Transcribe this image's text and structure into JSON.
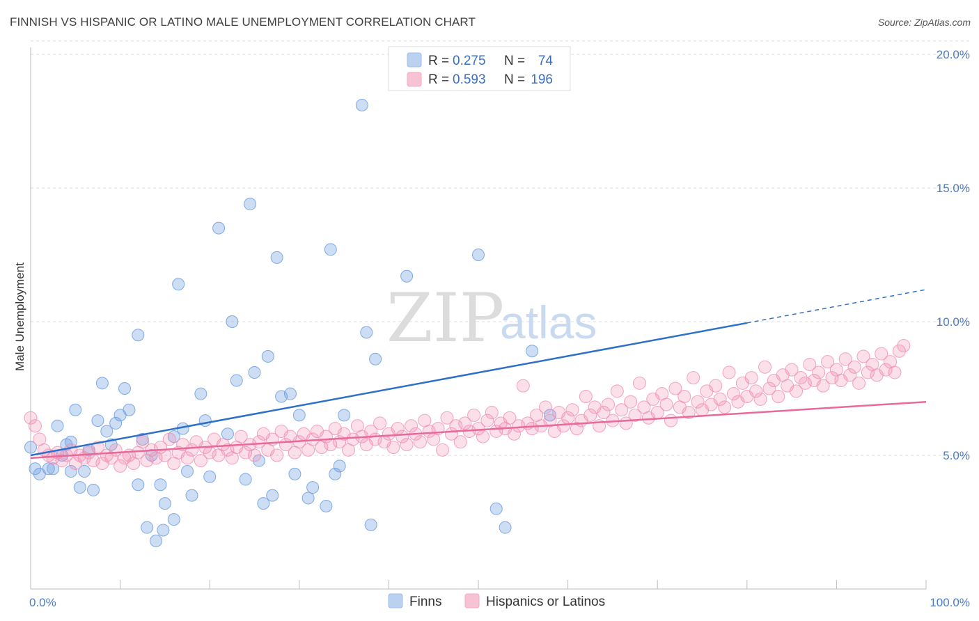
{
  "header": {
    "title": "FINNISH VS HISPANIC OR LATINO MALE UNEMPLOYMENT CORRELATION CHART",
    "source": "Source: ZipAtlas.com"
  },
  "watermark": {
    "zip": "ZIP",
    "atlas": "atlas"
  },
  "legend": {
    "rows": [
      {
        "r_label": "R = ",
        "r_value": "0.275",
        "n_label": "N = ",
        "n_value": "74",
        "color": "#9dbde8"
      },
      {
        "r_label": "R = ",
        "r_value": "0.593",
        "n_label": "N = ",
        "n_value": "196",
        "color": "#f4a9c2"
      }
    ]
  },
  "bottom_legend": [
    {
      "label": "Finns",
      "color": "#9dbde8"
    },
    {
      "label": "Hispanics or Latinos",
      "color": "#f4a9c2"
    }
  ],
  "chart_data": {
    "type": "scatter",
    "ylabel": "Male Unemployment",
    "xlim": [
      0,
      100
    ],
    "ylim": [
      0,
      20
    ],
    "x_tick_labels": [
      "0.0%",
      "100.0%"
    ],
    "y_ticks": [
      {
        "value": 5,
        "label": "5.0%"
      },
      {
        "value": 10,
        "label": "10.0%"
      },
      {
        "value": 15,
        "label": "15.0%"
      },
      {
        "value": 20,
        "label": "20.0%"
      }
    ],
    "grid": true,
    "colors": {
      "finns": "#6c9ee0",
      "hispanics": "#f08db0",
      "finns_line": "#2e6fc9",
      "hispanics_line": "#e8699a"
    },
    "series": [
      {
        "name": "Finns",
        "trend": {
          "x0": 0,
          "y0": 5.0,
          "x1": 80,
          "y1": 9.95,
          "dash_to_x": 100,
          "dash_to_y": 11.2
        },
        "points": [
          [
            0,
            5.3
          ],
          [
            0.5,
            4.5
          ],
          [
            1,
            4.3
          ],
          [
            2,
            4.5
          ],
          [
            2.5,
            4.5
          ],
          [
            3,
            6.1
          ],
          [
            3.5,
            5.0
          ],
          [
            4,
            5.4
          ],
          [
            4.5,
            4.4
          ],
          [
            4.5,
            5.5
          ],
          [
            5,
            6.7
          ],
          [
            5.5,
            3.8
          ],
          [
            6,
            4.4
          ],
          [
            6.5,
            5.2
          ],
          [
            7,
            3.7
          ],
          [
            7.5,
            6.3
          ],
          [
            8,
            7.7
          ],
          [
            8.5,
            5.9
          ],
          [
            9,
            5.4
          ],
          [
            9.5,
            6.2
          ],
          [
            10,
            6.5
          ],
          [
            10.5,
            7.5
          ],
          [
            11,
            6.7
          ],
          [
            12,
            3.9
          ],
          [
            12,
            9.5
          ],
          [
            12.5,
            5.6
          ],
          [
            13,
            2.3
          ],
          [
            13.5,
            5.0
          ],
          [
            14,
            1.8
          ],
          [
            14.5,
            3.9
          ],
          [
            14.8,
            2.2
          ],
          [
            15,
            3.2
          ],
          [
            16,
            2.6
          ],
          [
            16,
            5.7
          ],
          [
            16.5,
            11.4
          ],
          [
            17,
            6.0
          ],
          [
            17.5,
            4.4
          ],
          [
            18,
            3.5
          ],
          [
            19,
            7.3
          ],
          [
            19.5,
            6.3
          ],
          [
            20,
            4.2
          ],
          [
            21,
            13.5
          ],
          [
            22,
            5.8
          ],
          [
            22.5,
            10.0
          ],
          [
            23,
            7.8
          ],
          [
            24,
            4.1
          ],
          [
            24.5,
            14.4
          ],
          [
            25,
            8.1
          ],
          [
            25.5,
            4.8
          ],
          [
            26,
            3.2
          ],
          [
            26.5,
            8.7
          ],
          [
            27,
            3.5
          ],
          [
            27.5,
            12.4
          ],
          [
            28,
            7.2
          ],
          [
            29,
            7.3
          ],
          [
            29.5,
            4.3
          ],
          [
            30,
            6.5
          ],
          [
            31,
            3.4
          ],
          [
            31.5,
            3.8
          ],
          [
            33,
            3.1
          ],
          [
            33.5,
            12.7
          ],
          [
            34,
            4.3
          ],
          [
            35,
            6.5
          ],
          [
            38,
            2.4
          ],
          [
            37.5,
            9.6
          ],
          [
            37,
            18.1
          ],
          [
            38.5,
            8.6
          ],
          [
            42,
            11.7
          ],
          [
            50,
            12.5
          ],
          [
            52,
            3.0
          ],
          [
            53,
            2.3
          ],
          [
            56,
            8.9
          ],
          [
            58,
            6.5
          ],
          [
            34.5,
            4.6
          ]
        ]
      },
      {
        "name": "Hispanics or Latinos",
        "trend": {
          "x0": 0,
          "y0": 4.9,
          "x1": 100,
          "y1": 7.0
        },
        "points": [
          [
            0,
            6.4
          ],
          [
            0.5,
            6.1
          ],
          [
            1,
            5.6
          ],
          [
            1.5,
            5.2
          ],
          [
            2,
            5.0
          ],
          [
            2.5,
            4.9
          ],
          [
            3,
            5.1
          ],
          [
            3.5,
            4.8
          ],
          [
            4,
            5.0
          ],
          [
            4.5,
            5.2
          ],
          [
            5,
            4.7
          ],
          [
            5.5,
            5.0
          ],
          [
            6,
            4.9
          ],
          [
            6.5,
            5.1
          ],
          [
            7,
            4.8
          ],
          [
            7.5,
            5.3
          ],
          [
            8,
            4.7
          ],
          [
            8.5,
            5.0
          ],
          [
            9,
            4.9
          ],
          [
            9.5,
            5.2
          ],
          [
            10,
            4.6
          ],
          [
            10.5,
            4.9
          ],
          [
            11,
            5.0
          ],
          [
            11.5,
            4.7
          ],
          [
            12,
            5.1
          ],
          [
            12.5,
            5.5
          ],
          [
            13,
            4.8
          ],
          [
            13.5,
            5.2
          ],
          [
            14,
            4.9
          ],
          [
            14.5,
            5.3
          ],
          [
            15,
            5.0
          ],
          [
            15.5,
            5.6
          ],
          [
            16,
            4.7
          ],
          [
            16.5,
            5.1
          ],
          [
            17,
            5.4
          ],
          [
            17.5,
            4.9
          ],
          [
            18,
            5.2
          ],
          [
            18.5,
            5.5
          ],
          [
            19,
            4.8
          ],
          [
            19.5,
            5.3
          ],
          [
            20,
            5.1
          ],
          [
            20.5,
            5.6
          ],
          [
            21,
            5.0
          ],
          [
            21.5,
            5.4
          ],
          [
            22,
            5.2
          ],
          [
            22.5,
            4.9
          ],
          [
            23,
            5.3
          ],
          [
            23.5,
            5.7
          ],
          [
            24,
            5.1
          ],
          [
            24.5,
            5.4
          ],
          [
            25,
            5.0
          ],
          [
            25.5,
            5.5
          ],
          [
            26,
            5.8
          ],
          [
            26.5,
            5.2
          ],
          [
            27,
            5.6
          ],
          [
            27.5,
            5.0
          ],
          [
            28,
            5.9
          ],
          [
            28.5,
            5.4
          ],
          [
            29,
            5.7
          ],
          [
            29.5,
            5.1
          ],
          [
            30,
            5.5
          ],
          [
            30.5,
            5.8
          ],
          [
            31,
            5.2
          ],
          [
            31.5,
            5.6
          ],
          [
            32,
            5.9
          ],
          [
            32.5,
            5.3
          ],
          [
            33,
            5.7
          ],
          [
            33.5,
            5.4
          ],
          [
            34,
            6.0
          ],
          [
            34.5,
            5.5
          ],
          [
            35,
            5.8
          ],
          [
            35.5,
            5.2
          ],
          [
            36,
            5.6
          ],
          [
            36.5,
            6.1
          ],
          [
            37,
            5.7
          ],
          [
            37.5,
            5.4
          ],
          [
            38,
            5.9
          ],
          [
            38.5,
            5.6
          ],
          [
            39,
            6.2
          ],
          [
            39.5,
            5.5
          ],
          [
            40,
            5.8
          ],
          [
            40.5,
            5.3
          ],
          [
            41,
            6.0
          ],
          [
            41.5,
            5.7
          ],
          [
            42,
            5.4
          ],
          [
            42.5,
            6.1
          ],
          [
            43,
            5.8
          ],
          [
            43.5,
            5.5
          ],
          [
            44,
            6.3
          ],
          [
            44.5,
            5.9
          ],
          [
            45,
            5.6
          ],
          [
            45.5,
            6.0
          ],
          [
            46,
            5.2
          ],
          [
            46.5,
            6.4
          ],
          [
            47,
            5.8
          ],
          [
            47.5,
            6.1
          ],
          [
            48,
            5.5
          ],
          [
            48.5,
            6.2
          ],
          [
            49,
            5.9
          ],
          [
            49.5,
            6.5
          ],
          [
            50,
            6.0
          ],
          [
            50.5,
            5.7
          ],
          [
            51,
            6.3
          ],
          [
            51.5,
            6.6
          ],
          [
            52,
            5.9
          ],
          [
            52.5,
            6.2
          ],
          [
            53,
            6.0
          ],
          [
            53.5,
            6.4
          ],
          [
            54,
            5.8
          ],
          [
            54.5,
            6.1
          ],
          [
            55,
            7.6
          ],
          [
            55.5,
            6.2
          ],
          [
            56,
            6.0
          ],
          [
            56.5,
            6.5
          ],
          [
            57,
            6.1
          ],
          [
            57.5,
            6.8
          ],
          [
            58,
            6.3
          ],
          [
            58.5,
            5.9
          ],
          [
            59,
            6.6
          ],
          [
            59.5,
            6.1
          ],
          [
            60,
            6.4
          ],
          [
            60.5,
            6.7
          ],
          [
            61,
            6.0
          ],
          [
            61.5,
            6.3
          ],
          [
            62,
            7.2
          ],
          [
            62.5,
            6.5
          ],
          [
            63,
            6.8
          ],
          [
            63.5,
            6.1
          ],
          [
            64,
            6.6
          ],
          [
            64.5,
            6.9
          ],
          [
            65,
            6.3
          ],
          [
            65.5,
            7.4
          ],
          [
            66,
            6.7
          ],
          [
            66.5,
            6.2
          ],
          [
            67,
            7.0
          ],
          [
            67.5,
            6.5
          ],
          [
            68,
            7.7
          ],
          [
            68.5,
            6.8
          ],
          [
            69,
            6.4
          ],
          [
            69.5,
            7.1
          ],
          [
            70,
            6.6
          ],
          [
            70.5,
            7.3
          ],
          [
            71,
            6.9
          ],
          [
            71.5,
            6.3
          ],
          [
            72,
            7.5
          ],
          [
            72.5,
            6.8
          ],
          [
            73,
            7.2
          ],
          [
            73.5,
            6.6
          ],
          [
            74,
            7.9
          ],
          [
            74.5,
            7.0
          ],
          [
            75,
            6.7
          ],
          [
            75.5,
            7.4
          ],
          [
            76,
            6.9
          ],
          [
            76.5,
            7.6
          ],
          [
            77,
            7.1
          ],
          [
            77.5,
            6.8
          ],
          [
            78,
            8.1
          ],
          [
            78.5,
            7.3
          ],
          [
            79,
            7.0
          ],
          [
            79.5,
            7.7
          ],
          [
            80,
            7.2
          ],
          [
            80.5,
            7.9
          ],
          [
            81,
            7.4
          ],
          [
            81.5,
            7.1
          ],
          [
            82,
            8.3
          ],
          [
            82.5,
            7.5
          ],
          [
            83,
            7.8
          ],
          [
            83.5,
            7.2
          ],
          [
            84,
            8.0
          ],
          [
            84.5,
            7.6
          ],
          [
            85,
            8.2
          ],
          [
            85.5,
            7.4
          ],
          [
            86,
            7.9
          ],
          [
            86.5,
            7.7
          ],
          [
            87,
            8.4
          ],
          [
            87.5,
            7.8
          ],
          [
            88,
            8.1
          ],
          [
            88.5,
            7.6
          ],
          [
            89,
            8.5
          ],
          [
            89.5,
            7.9
          ],
          [
            90,
            8.2
          ],
          [
            90.5,
            7.8
          ],
          [
            91,
            8.6
          ],
          [
            91.5,
            8.0
          ],
          [
            92,
            8.3
          ],
          [
            92.5,
            7.7
          ],
          [
            93,
            8.7
          ],
          [
            93.5,
            8.1
          ],
          [
            94,
            8.4
          ],
          [
            94.5,
            8.0
          ],
          [
            95,
            8.8
          ],
          [
            95.5,
            8.2
          ],
          [
            96,
            8.5
          ],
          [
            96.5,
            8.1
          ],
          [
            97,
            8.9
          ],
          [
            97.5,
            9.1
          ]
        ]
      }
    ]
  }
}
